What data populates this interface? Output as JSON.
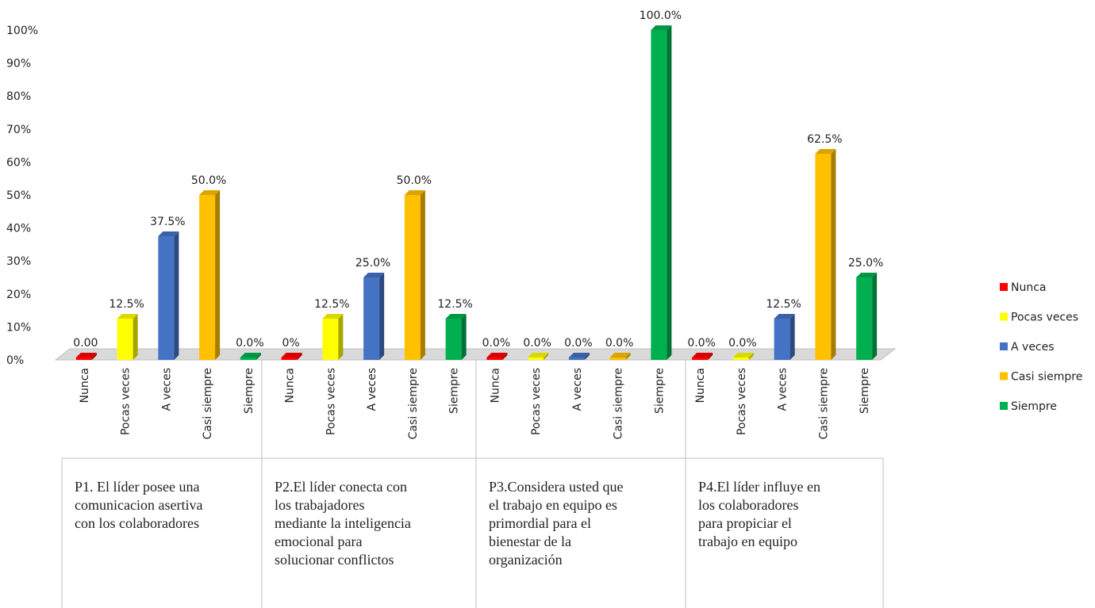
{
  "chart_data": {
    "type": "bar",
    "y_ticks": [
      "0%",
      "10%",
      "20%",
      "30%",
      "40%",
      "50%",
      "60%",
      "70%",
      "80%",
      "90%",
      "100%"
    ],
    "ylim": [
      0,
      100
    ],
    "series_order": [
      "Nunca",
      "Pocas veces",
      "A veces",
      "Casi siempre",
      "Siempre"
    ],
    "series_colors": {
      "Nunca": "#ff0000",
      "Pocas veces": "#ffff00",
      "A veces": "#4472c4",
      "Casi siempre": "#ffc000",
      "Siempre": "#00b050"
    },
    "legend_position": "right",
    "groups": [
      {
        "label": "P1. El líder posee una comunicacion asertiva con los colaboradores",
        "label_lines": [
          "P1. El líder posee una",
          "comunicacion asertiva",
          "con los colaboradores"
        ],
        "bars": [
          {
            "category": "Nunca",
            "value": 0,
            "label": "0.00"
          },
          {
            "category": "Pocas veces",
            "value": 12.5,
            "label": "12.5%"
          },
          {
            "category": "A veces",
            "value": 37.5,
            "label": "37.5%"
          },
          {
            "category": "Casi siempre",
            "value": 50,
            "label": "50.0%"
          },
          {
            "category": "Siempre",
            "value": 0,
            "label": "0.0%"
          }
        ]
      },
      {
        "label": "P2.El líder conecta con los trabajadores mediante la inteligencia emocional para solucionar conflictos",
        "label_lines": [
          "P2.El líder conecta con",
          "los trabajadores",
          "mediante la inteligencia",
          "emocional para",
          "solucionar conflictos"
        ],
        "bars": [
          {
            "category": "Nunca",
            "value": 0,
            "label": "0%"
          },
          {
            "category": "Pocas veces",
            "value": 12.5,
            "label": "12.5%"
          },
          {
            "category": "A veces",
            "value": 25,
            "label": "25.0%"
          },
          {
            "category": "Casi siempre",
            "value": 50,
            "label": "50.0%"
          },
          {
            "category": "Siempre",
            "value": 12.5,
            "label": "12.5%"
          }
        ]
      },
      {
        "label": "P3.Considera usted que el trabajo en equipo es primordial para el bienestar de la organización",
        "label_lines": [
          "P3.Considera usted que",
          "el trabajo en equipo es",
          "primordial para el",
          "bienestar de la",
          "organización"
        ],
        "bars": [
          {
            "category": "Nunca",
            "value": 0,
            "label": "0.0%"
          },
          {
            "category": "Pocas veces",
            "value": 0,
            "label": "0.0%"
          },
          {
            "category": "A veces",
            "value": 0,
            "label": "0.0%"
          },
          {
            "category": "Casi siempre",
            "value": 0,
            "label": "0.0%"
          },
          {
            "category": "Siempre",
            "value": 100,
            "label": "100.0%"
          }
        ]
      },
      {
        "label": "P4.El líder influye en los colaboradores para propiciar el trabajo en equipo",
        "label_lines": [
          "P4.El líder influye en",
          "los colaboradores",
          "para propiciar el",
          "trabajo en equipo"
        ],
        "bars": [
          {
            "category": "Nunca",
            "value": 0,
            "label": "0.0%"
          },
          {
            "category": "Pocas veces",
            "value": 0,
            "label": "0.0%"
          },
          {
            "category": "A veces",
            "value": 12.5,
            "label": "12.5%"
          },
          {
            "category": "Casi siempre",
            "value": 62.5,
            "label": "62.5%"
          },
          {
            "category": "Siempre",
            "value": 25,
            "label": "25.0%"
          }
        ]
      }
    ],
    "legend": [
      {
        "name": "Nunca",
        "color": "#ff0000"
      },
      {
        "name": "Pocas veces",
        "color": "#ffff00"
      },
      {
        "name": "A veces",
        "color": "#4472c4"
      },
      {
        "name": "Casi siempre",
        "color": "#ffc000"
      },
      {
        "name": "Siempre",
        "color": "#00b050"
      }
    ]
  }
}
